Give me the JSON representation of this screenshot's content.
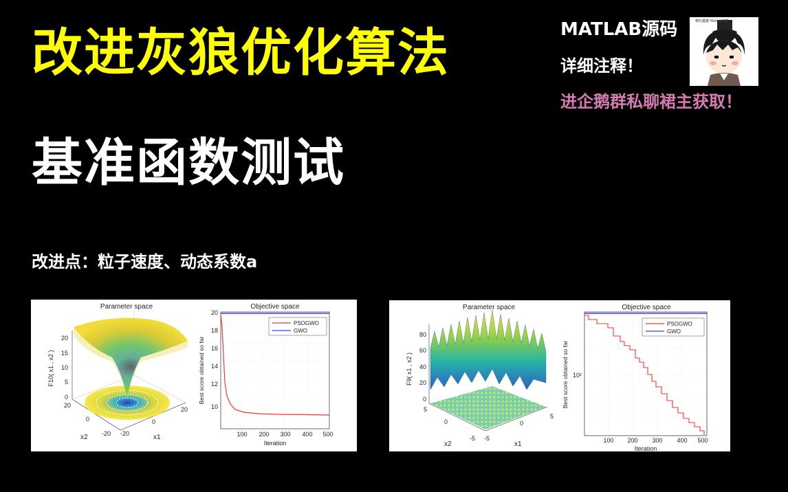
{
  "title": "改进灰狼优化算法",
  "subtitle": "基准函数测试",
  "improvement_points": "改进点：粒子速度、动态系数a",
  "side_notes": {
    "line1": "MATLAB源码",
    "line2": "详细注释！",
    "line3": "进企鹅群私聊裙主获取！"
  },
  "avatar_caption": "哪吒魔童·Matlab仿真",
  "colors": {
    "title": "#ffff00",
    "promo": "#d87bb3",
    "psogwo": "#ff3333",
    "gwo": "#3344ff"
  },
  "panels": [
    {
      "left_title": "Parameter space",
      "right_title": "Objective space",
      "zlabel": "F10( x1 , x2 )",
      "xlabel": "x1",
      "ylabel": "x2",
      "obj_ylabel": "Best score obtained so far",
      "obj_xlabel": "Iteration",
      "z_ticks": [
        "20",
        "15",
        "10",
        "5",
        "0"
      ],
      "x1_ticks": [
        "-20",
        "0",
        "20"
      ],
      "x2_ticks": [
        "20",
        "0",
        "-20"
      ],
      "obj_y_ticks": [
        "20",
        "18",
        "16",
        "14",
        "12",
        "10"
      ],
      "obj_x_ticks": [
        "100",
        "200",
        "300",
        "400",
        "500"
      ],
      "legend": [
        "PSOGWO",
        "GWO"
      ]
    },
    {
      "left_title": "Parameter space",
      "right_title": "Objective space",
      "zlabel": "F9( x1 , x2 )",
      "xlabel": "x1",
      "ylabel": "x2",
      "obj_ylabel": "Best score obtained so far",
      "obj_xlabel": "Iteration",
      "z_ticks": [
        "80",
        "60",
        "40",
        "20",
        "0"
      ],
      "x1_ticks": [
        "-5",
        "0",
        "5"
      ],
      "x2_ticks": [
        "5",
        "0",
        "-5"
      ],
      "obj_y_ticks": [
        "10²"
      ],
      "obj_x_ticks": [
        "100",
        "200",
        "300",
        "400",
        "500"
      ],
      "legend": [
        "PSOGWO",
        "GWO"
      ]
    }
  ]
}
